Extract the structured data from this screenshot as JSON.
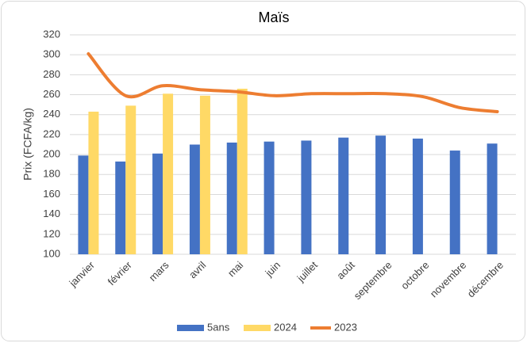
{
  "chart_data": {
    "type": "bar",
    "title": "Maïs",
    "ylabel": "Prix (FCFA/kg)",
    "categories": [
      "janvier",
      "février",
      "mars",
      "avril",
      "mai",
      "juin",
      "juillet",
      "août",
      "septembre",
      "octobre",
      "novembre",
      "décembre"
    ],
    "series": [
      {
        "name": "5ans",
        "color": "#4472c4",
        "values": [
          199,
          193,
          201,
          210,
          212,
          213,
          214,
          217,
          219,
          216,
          204,
          211
        ]
      },
      {
        "name": "2024",
        "color": "#ffd966",
        "values": [
          243,
          249,
          261,
          259,
          266,
          null,
          null,
          null,
          null,
          null,
          null,
          null
        ]
      },
      {
        "name": "2023",
        "color": "#ed7d31",
        "type": "line",
        "smooth": true,
        "values": [
          301,
          259,
          269,
          265,
          263,
          259,
          261,
          261,
          261,
          258,
          247,
          243
        ]
      }
    ],
    "ylim": [
      100,
      320
    ],
    "yticks": [
      100,
      120,
      140,
      160,
      180,
      200,
      220,
      240,
      260,
      280,
      300,
      320
    ],
    "grid": true,
    "legend": "bottom"
  }
}
